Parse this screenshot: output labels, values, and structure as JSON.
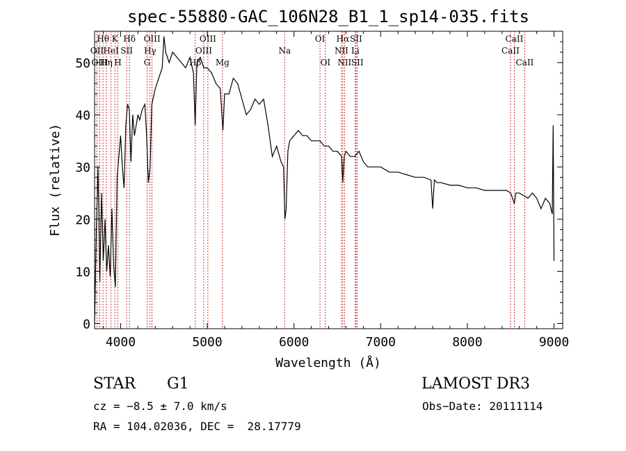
{
  "chart_data": {
    "type": "line",
    "title": "spec-55880-GAC_106N28_B1_1_sp14-035.fits",
    "xlabel": "Wavelength (Å)",
    "ylabel": "Flux (relative)",
    "xlim": [
      3700,
      9100
    ],
    "ylim": [
      -1,
      56
    ],
    "x_ticks": [
      4000,
      5000,
      6000,
      7000,
      8000,
      9000
    ],
    "y_ticks": [
      0,
      10,
      20,
      30,
      40,
      50
    ],
    "series": [
      {
        "name": "flux",
        "x": [
          3700,
          3720,
          3740,
          3760,
          3780,
          3800,
          3820,
          3840,
          3860,
          3880,
          3900,
          3920,
          3940,
          3960,
          3980,
          4000,
          4020,
          4040,
          4060,
          4080,
          4100,
          4120,
          4140,
          4160,
          4180,
          4200,
          4220,
          4250,
          4280,
          4300,
          4320,
          4340,
          4360,
          4400,
          4440,
          4480,
          4500,
          4520,
          4560,
          4600,
          4650,
          4700,
          4750,
          4800,
          4840,
          4860,
          4880,
          4920,
          4960,
          5000,
          5050,
          5100,
          5150,
          5180,
          5200,
          5250,
          5300,
          5350,
          5400,
          5450,
          5500,
          5550,
          5600,
          5650,
          5700,
          5750,
          5800,
          5850,
          5880,
          5895,
          5910,
          5930,
          5950,
          6000,
          6050,
          6100,
          6150,
          6200,
          6250,
          6300,
          6350,
          6400,
          6450,
          6500,
          6550,
          6563,
          6580,
          6600,
          6650,
          6700,
          6750,
          6800,
          6850,
          6900,
          6950,
          7000,
          7100,
          7200,
          7300,
          7400,
          7500,
          7580,
          7600,
          7620,
          7650,
          7700,
          7800,
          7900,
          8000,
          8100,
          8200,
          8300,
          8400,
          8450,
          8500,
          8542,
          8560,
          8600,
          8650,
          8700,
          8750,
          8800,
          8850,
          8900,
          8950,
          8980,
          8990,
          9000
        ],
        "y": [
          0,
          18,
          30,
          8,
          25,
          12,
          20,
          10,
          15,
          9,
          22,
          11,
          7,
          28,
          32,
          36,
          30,
          26,
          38,
          42,
          41,
          31,
          40,
          36,
          38,
          40,
          39,
          41,
          42,
          36,
          27,
          30,
          42,
          45,
          47,
          49,
          55,
          52,
          50,
          52,
          51,
          50,
          49,
          51,
          48,
          38,
          50,
          51,
          49,
          49,
          48,
          46,
          45,
          37,
          44,
          44,
          47,
          46,
          43,
          40,
          41,
          43,
          42,
          43,
          38,
          32,
          34,
          31,
          30,
          20,
          22,
          33,
          35,
          36,
          37,
          36,
          36,
          35,
          35,
          35,
          34,
          34,
          33,
          33,
          32,
          27,
          32,
          33,
          32,
          32,
          33,
          31,
          30,
          30,
          30,
          30,
          29,
          29,
          28.5,
          28,
          28,
          27.5,
          22,
          27.5,
          27,
          27,
          26.5,
          26.5,
          26,
          26,
          25.5,
          25.5,
          25.5,
          25.5,
          25,
          23,
          25,
          25,
          24.5,
          24,
          25,
          24,
          22,
          24,
          23,
          21,
          38,
          12
        ]
      }
    ],
    "line_markers": [
      {
        "label": "Hθ",
        "x": 3797,
        "row": 1
      },
      {
        "label": "OII",
        "x": 3727,
        "row": 2
      },
      {
        "label": "OIII",
        "x": 3760,
        "row": 3
      },
      {
        "label": "K",
        "x": 3934,
        "row": 1
      },
      {
        "label": "HeI",
        "x": 3889,
        "row": 2
      },
      {
        "label": "Hη",
        "x": 3835,
        "row": 3
      },
      {
        "label": "SII",
        "x": 4070,
        "row": 2
      },
      {
        "label": "H",
        "x": 3969,
        "row": 3
      },
      {
        "label": "Hδ",
        "x": 4102,
        "row": 1
      },
      {
        "label": "OIII",
        "x": 4363,
        "row": 1
      },
      {
        "label": "Hγ",
        "x": 4340,
        "row": 2
      },
      {
        "label": "G",
        "x": 4305,
        "row": 3
      },
      {
        "label": "OIII",
        "x": 5007,
        "row": 1
      },
      {
        "label": "OIII",
        "x": 4959,
        "row": 2
      },
      {
        "label": "Hβ",
        "x": 4861,
        "row": 3
      },
      {
        "label": "Mg",
        "x": 5175,
        "row": 3
      },
      {
        "label": "Na",
        "x": 5893,
        "row": 2
      },
      {
        "label": "OI",
        "x": 6300,
        "row": 1
      },
      {
        "label": "OI",
        "x": 6363,
        "row": 3
      },
      {
        "label": "Hα",
        "x": 6563,
        "row": 1
      },
      {
        "label": "SII",
        "x": 6716,
        "row": 1
      },
      {
        "label": "NII",
        "x": 6548,
        "row": 2
      },
      {
        "label": "Li",
        "x": 6708,
        "row": 2
      },
      {
        "label": "NII",
        "x": 6583,
        "row": 3
      },
      {
        "label": "SII",
        "x": 6731,
        "row": 3
      },
      {
        "label": "CaII",
        "x": 8542,
        "row": 1
      },
      {
        "label": "CaII",
        "x": 8498,
        "row": 2
      },
      {
        "label": "CaII",
        "x": 8662,
        "row": 3
      }
    ]
  },
  "info": {
    "object_class": "STAR",
    "subclass": "G1",
    "survey": "LAMOST DR3",
    "redshift": "cz = −8.5 ± 7.0 km/s",
    "obs_date": "Obs−Date: 20111114",
    "coords": "RA = 104.02036, DEC =  28.17779"
  },
  "colors": {
    "line": "#000000",
    "markers": "#c00000",
    "background": "#ffffff"
  }
}
